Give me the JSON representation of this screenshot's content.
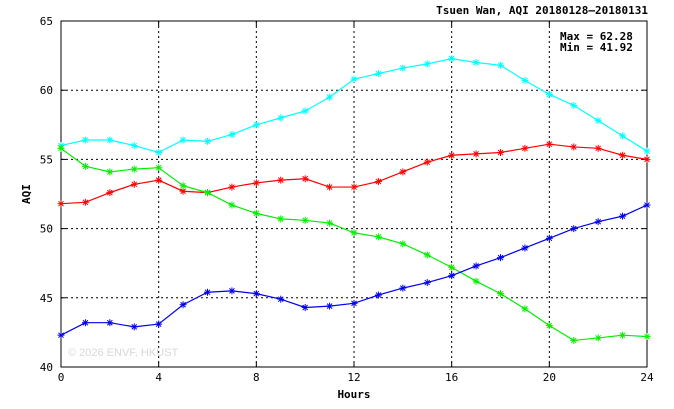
{
  "chart_data": {
    "type": "line",
    "title": "Tsuen Wan, AQI 20180128–20180131",
    "xlabel": "Hours",
    "ylabel": "AQI",
    "xlim": [
      0,
      24
    ],
    "ylim": [
      40,
      65
    ],
    "xticks": [
      0,
      4,
      8,
      12,
      16,
      20,
      24
    ],
    "yticks": [
      40,
      45,
      50,
      55,
      60,
      65
    ],
    "grid": true,
    "stats": [
      "Max = 62.28",
      "Min = 41.92"
    ],
    "watermark": "© 2026  ENVF, HKUST",
    "x": [
      0,
      1,
      2,
      3,
      4,
      5,
      6,
      7,
      8,
      9,
      10,
      11,
      12,
      13,
      14,
      15,
      16,
      17,
      18,
      19,
      20,
      21,
      22,
      23,
      24
    ],
    "series": [
      {
        "color": "#00ffff",
        "values": [
          56.0,
          56.4,
          56.4,
          56.0,
          55.5,
          56.4,
          56.3,
          56.8,
          57.5,
          58.0,
          58.5,
          59.5,
          60.8,
          61.2,
          61.6,
          61.9,
          62.28,
          62.0,
          61.8,
          60.7,
          59.7,
          58.9,
          57.8,
          56.7,
          55.6
        ]
      },
      {
        "color": "#ff0000",
        "values": [
          51.8,
          51.9,
          52.6,
          53.2,
          53.5,
          52.7,
          52.6,
          53.0,
          53.3,
          53.5,
          53.6,
          53.0,
          53.0,
          53.4,
          54.1,
          54.8,
          55.3,
          55.4,
          55.5,
          55.8,
          56.1,
          55.9,
          55.8,
          55.3,
          55.0
        ]
      },
      {
        "color": "#00ee00",
        "values": [
          55.8,
          54.5,
          54.1,
          54.3,
          54.4,
          53.1,
          52.6,
          51.7,
          51.1,
          50.7,
          50.6,
          50.4,
          49.7,
          49.4,
          48.9,
          48.1,
          47.2,
          46.2,
          45.3,
          44.2,
          43.0,
          41.92,
          42.1,
          42.3,
          42.2
        ]
      },
      {
        "color": "#0000ee",
        "values": [
          42.3,
          43.2,
          43.2,
          42.9,
          43.1,
          44.5,
          45.4,
          45.5,
          45.3,
          44.9,
          44.3,
          44.4,
          44.6,
          45.2,
          45.7,
          46.1,
          46.6,
          47.3,
          47.9,
          48.6,
          49.3,
          50.0,
          50.5,
          50.9,
          51.7
        ]
      }
    ]
  }
}
